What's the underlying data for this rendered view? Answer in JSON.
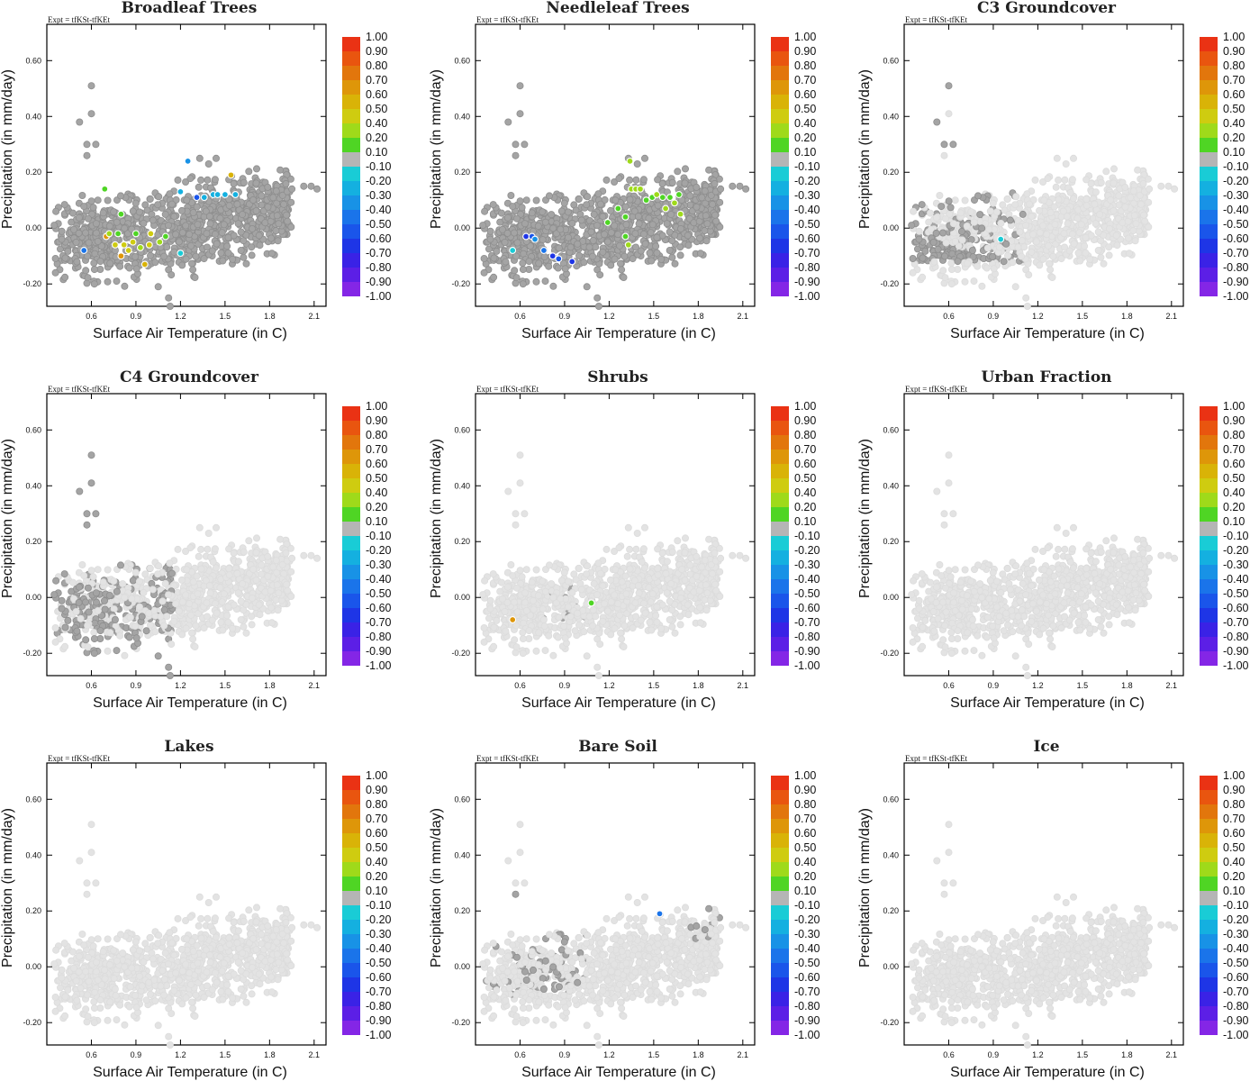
{
  "figure": {
    "expt_label": "Expt = tfKSt-tfKEt",
    "xlabel": "Surface Air Temperature (in C)",
    "ylabel": "Precipitation (in mm/day)",
    "x_ticks": [
      "0.6",
      "0.9",
      "1.2",
      "1.5",
      "1.8",
      "2.1"
    ],
    "y_ticks": [
      "0.60",
      "0.40",
      "0.20",
      "0.00",
      "-0.20"
    ],
    "xlim": [
      0.3,
      2.18
    ],
    "ylim": [
      -0.28,
      0.73
    ]
  },
  "colorbar": {
    "labels": [
      "1.00",
      "0.90",
      "0.80",
      "0.70",
      "0.60",
      "0.50",
      "0.40",
      "0.20",
      "0.10",
      "-0.10",
      "-0.20",
      "-0.30",
      "-0.40",
      "-0.50",
      "-0.60",
      "-0.70",
      "-0.80",
      "-0.90",
      "-1.00"
    ],
    "colors": [
      "#e8141c",
      "#ea3214",
      "#e9550f",
      "#e2760c",
      "#de9609",
      "#d9b307",
      "#cfcc10",
      "#9fda1a",
      "#4fd524",
      "#b5b5b5",
      "#19ccd6",
      "#14b0e0",
      "#1892e6",
      "#1a74ea",
      "#1a55ea",
      "#1e35e6",
      "#3a22e6",
      "#5c1fe6",
      "#8426e6"
    ]
  },
  "chart_data": [
    {
      "type": "scatter",
      "title": "Broadleaf Trees",
      "highlights": [
        {
          "x": 0.55,
          "y": -0.08,
          "v": -0.5
        },
        {
          "x": 0.69,
          "y": 0.14,
          "v": 0.1
        },
        {
          "x": 0.7,
          "y": -0.03,
          "v": 0.6
        },
        {
          "x": 0.72,
          "y": -0.02,
          "v": 0.2
        },
        {
          "x": 0.76,
          "y": -0.06,
          "v": 0.4
        },
        {
          "x": 0.78,
          "y": -0.02,
          "v": 0.1
        },
        {
          "x": 0.8,
          "y": -0.1,
          "v": 0.6
        },
        {
          "x": 0.82,
          "y": -0.06,
          "v": 0.4
        },
        {
          "x": 0.85,
          "y": -0.08,
          "v": 0.4
        },
        {
          "x": 0.88,
          "y": -0.05,
          "v": 0.4
        },
        {
          "x": 0.9,
          "y": -0.02,
          "v": 0.1
        },
        {
          "x": 0.93,
          "y": -0.07,
          "v": 0.3
        },
        {
          "x": 0.96,
          "y": -0.13,
          "v": 0.5
        },
        {
          "x": 0.8,
          "y": 0.05,
          "v": 0.1
        },
        {
          "x": 0.99,
          "y": -0.06,
          "v": 0.4
        },
        {
          "x": 1.0,
          "y": -0.02,
          "v": 0.4
        },
        {
          "x": 1.06,
          "y": -0.05,
          "v": 0.2
        },
        {
          "x": 1.1,
          "y": -0.03,
          "v": 0.1
        },
        {
          "x": 1.2,
          "y": 0.13,
          "v": -0.3
        },
        {
          "x": 1.25,
          "y": 0.24,
          "v": -0.4
        },
        {
          "x": 1.31,
          "y": 0.11,
          "v": -0.6
        },
        {
          "x": 1.36,
          "y": 0.11,
          "v": -0.3
        },
        {
          "x": 1.42,
          "y": 0.12,
          "v": -0.3
        },
        {
          "x": 1.45,
          "y": 0.12,
          "v": -0.3
        },
        {
          "x": 1.5,
          "y": 0.12,
          "v": -0.3
        },
        {
          "x": 1.54,
          "y": 0.19,
          "v": 0.5
        },
        {
          "x": 1.57,
          "y": 0.12,
          "v": -0.3
        },
        {
          "x": 1.2,
          "y": -0.09,
          "v": -0.2
        }
      ]
    },
    {
      "type": "scatter",
      "title": "Needleleaf Trees",
      "highlights": [
        {
          "x": 0.55,
          "y": -0.08,
          "v": -0.2
        },
        {
          "x": 0.64,
          "y": -0.03,
          "v": -0.7
        },
        {
          "x": 0.68,
          "y": -0.03,
          "v": -0.6
        },
        {
          "x": 0.76,
          "y": -0.08,
          "v": -0.5
        },
        {
          "x": 0.82,
          "y": -0.1,
          "v": -0.7
        },
        {
          "x": 0.86,
          "y": -0.11,
          "v": -0.6
        },
        {
          "x": 0.95,
          "y": -0.12,
          "v": -0.7
        },
        {
          "x": 0.7,
          "y": -0.04,
          "v": -0.4
        },
        {
          "x": 1.26,
          "y": 0.07,
          "v": 0.1
        },
        {
          "x": 1.31,
          "y": 0.04,
          "v": 0.1
        },
        {
          "x": 1.34,
          "y": 0.24,
          "v": 0.3
        },
        {
          "x": 1.35,
          "y": 0.14,
          "v": 0.3
        },
        {
          "x": 1.38,
          "y": 0.14,
          "v": 0.3
        },
        {
          "x": 1.41,
          "y": 0.14,
          "v": 0.3
        },
        {
          "x": 1.45,
          "y": 0.1,
          "v": 0.1
        },
        {
          "x": 1.49,
          "y": 0.11,
          "v": 0.1
        },
        {
          "x": 1.52,
          "y": 0.12,
          "v": 0.2
        },
        {
          "x": 1.56,
          "y": 0.11,
          "v": 0.1
        },
        {
          "x": 1.58,
          "y": 0.07,
          "v": 0.2
        },
        {
          "x": 1.61,
          "y": 0.11,
          "v": 0.1
        },
        {
          "x": 1.64,
          "y": 0.09,
          "v": 0.2
        },
        {
          "x": 1.67,
          "y": 0.12,
          "v": 0.1
        },
        {
          "x": 1.68,
          "y": 0.05,
          "v": 0.2
        },
        {
          "x": 1.31,
          "y": -0.03,
          "v": 0.1
        },
        {
          "x": 1.33,
          "y": -0.06,
          "v": 0.3
        },
        {
          "x": 1.19,
          "y": 0.02,
          "v": 0.1
        }
      ]
    },
    {
      "type": "scatter",
      "title": "C3 Groundcover",
      "highlights": [
        {
          "x": 0.95,
          "y": -0.04,
          "v": -0.2
        }
      ]
    },
    {
      "type": "scatter",
      "title": "C4 Groundcover",
      "highlights": []
    },
    {
      "type": "scatter",
      "title": "Shrubs",
      "highlights": [
        {
          "x": 0.55,
          "y": -0.08,
          "v": 0.6
        },
        {
          "x": 1.08,
          "y": -0.02,
          "v": 0.1
        }
      ]
    },
    {
      "type": "scatter",
      "title": "Urban Fraction",
      "highlights": []
    },
    {
      "type": "scatter",
      "title": "Lakes",
      "highlights": []
    },
    {
      "type": "scatter",
      "title": "Bare Soil",
      "highlights": [
        {
          "x": 1.54,
          "y": 0.19,
          "v": -0.5
        }
      ]
    },
    {
      "type": "scatter",
      "title": "Ice",
      "highlights": []
    }
  ]
}
